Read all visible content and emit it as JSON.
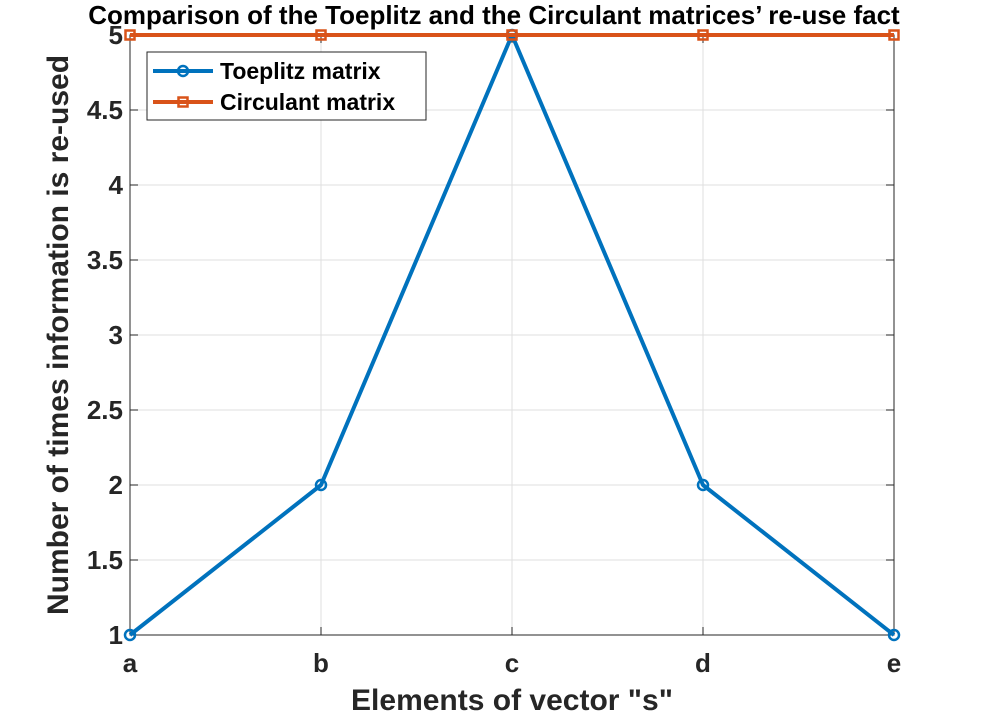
{
  "chart_data": {
    "type": "line",
    "title": "Comparison of the Toeplitz and the Circulant matrices’ re-use fact",
    "xlabel": "Elements of vector \"s\"",
    "ylabel": "Number of times information is re-used",
    "categories": [
      "a",
      "b",
      "c",
      "d",
      "e"
    ],
    "ylim": [
      1,
      5
    ],
    "yticks": [
      "1",
      "1.5",
      "2",
      "2.5",
      "3",
      "3.5",
      "4",
      "4.5",
      "5"
    ],
    "grid": true,
    "legend_position": "top-left",
    "series": [
      {
        "name": "Toeplitz matrix",
        "values": [
          1,
          2,
          5,
          2,
          1
        ],
        "color": "#0072bd",
        "marker": "circle"
      },
      {
        "name": "Circulant matrix",
        "values": [
          5,
          5,
          5,
          5,
          5
        ],
        "color": "#d95319",
        "marker": "square"
      }
    ]
  }
}
